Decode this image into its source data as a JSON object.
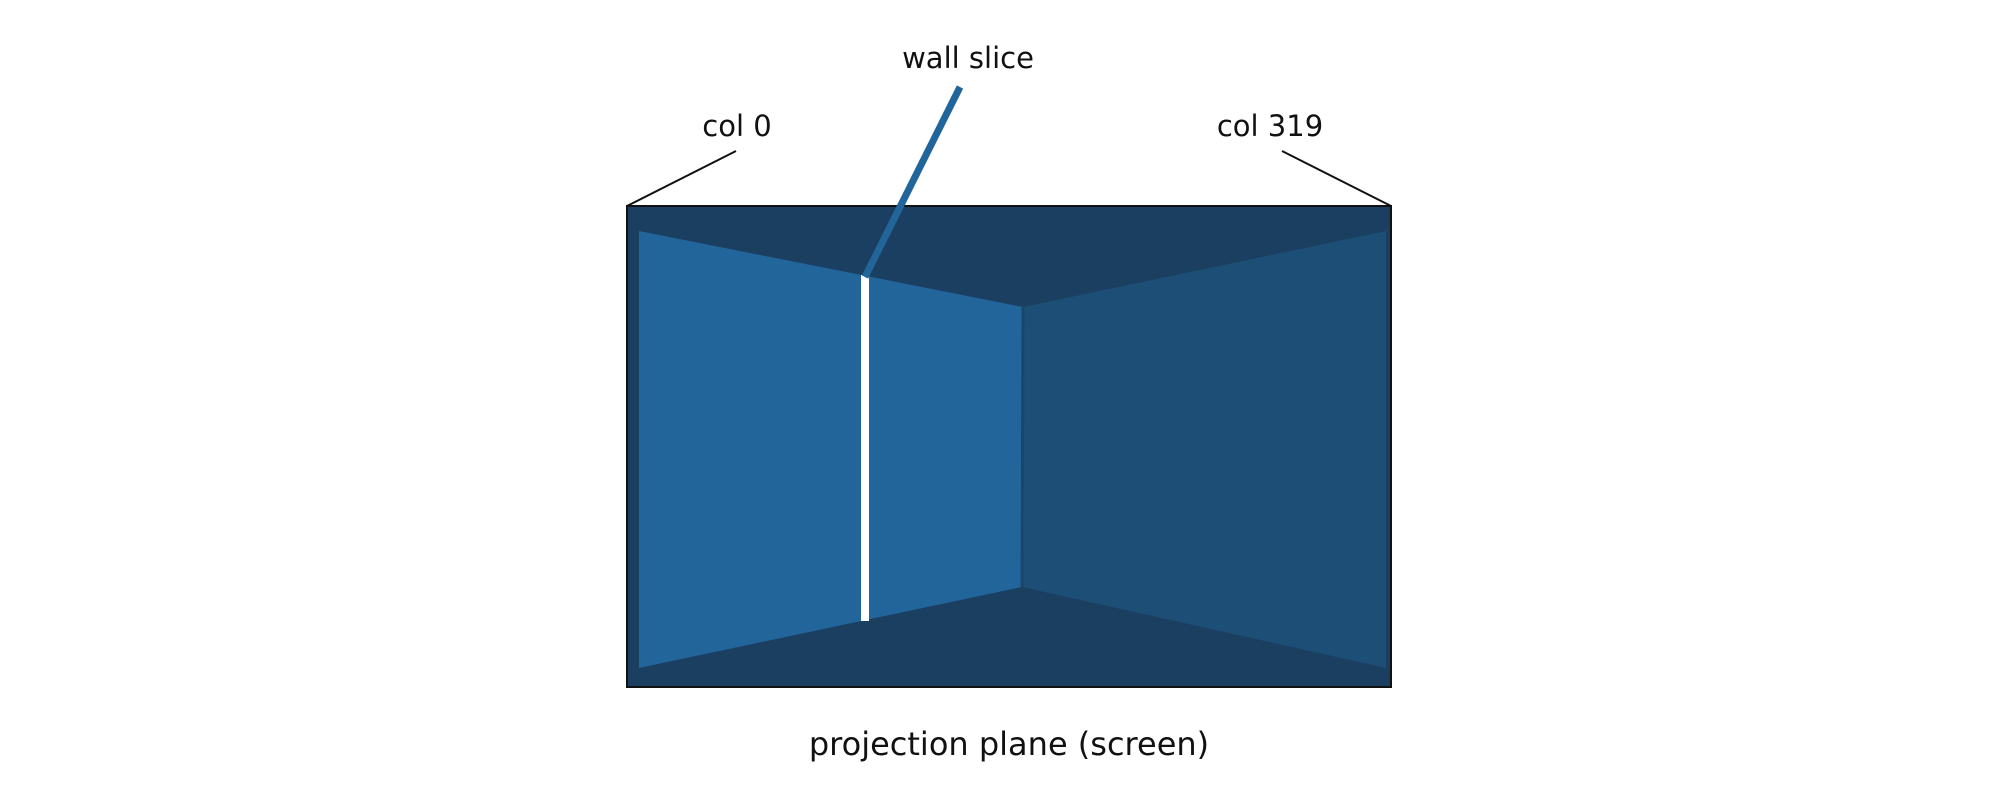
{
  "labels": {
    "col_left": "col 0",
    "col_right": "col 319",
    "wall_slice": "wall slice",
    "caption": "projection plane (screen)"
  },
  "colors": {
    "background": "#ffffff",
    "frame_fill": "#1b3f61",
    "frame_stroke": "#111111",
    "wall_left": "#22659b",
    "wall_right": "#1c4e76",
    "slice": "#ffffff",
    "slice_pointer": "#22659b",
    "leader_line": "#111111"
  }
}
